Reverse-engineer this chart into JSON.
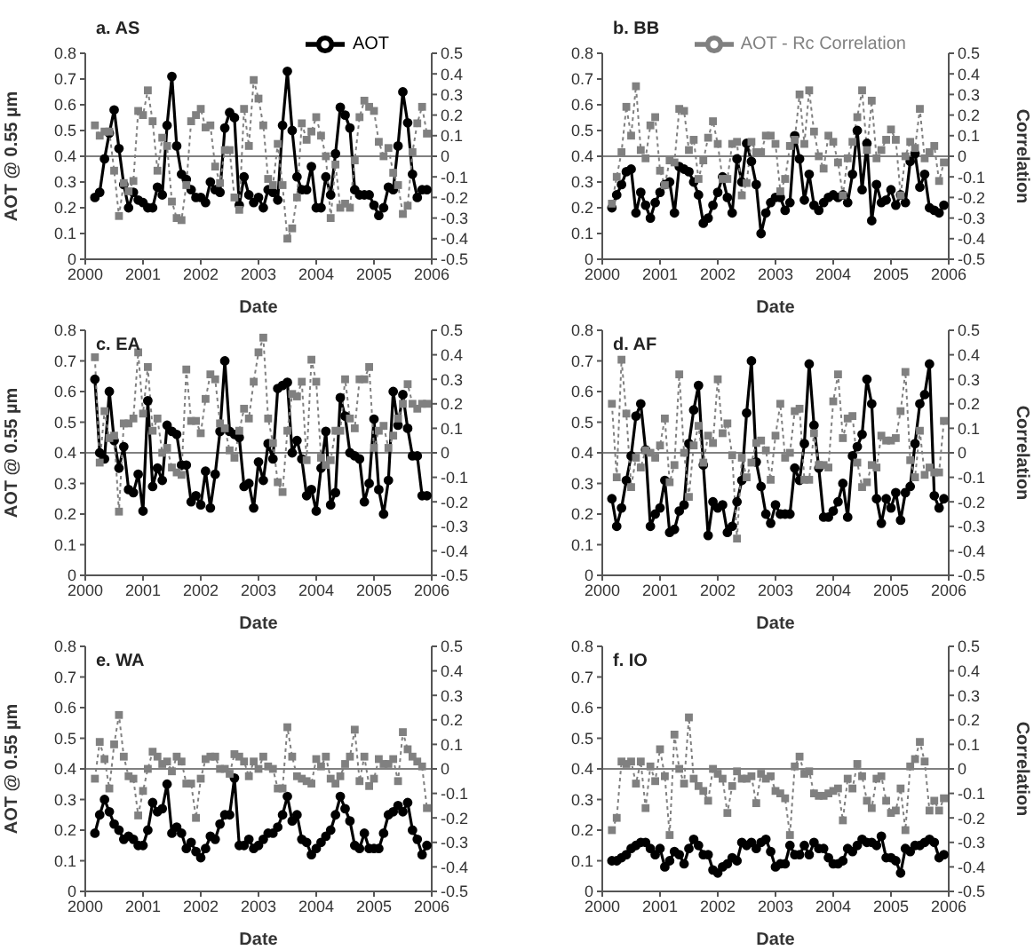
{
  "chart_data": [
    {
      "type": "line",
      "title": "a. AS",
      "xlabel": "Date",
      "ylabel": "AOT @ 0.55 µm",
      "x": [
        "2000-03",
        "2000-04",
        "2000-05",
        "2000-06",
        "2000-07",
        "2000-08",
        "2000-09",
        "2000-10",
        "2000-11",
        "2000-12",
        "2001-01",
        "2001-02",
        "2001-03",
        "2001-04",
        "2001-05",
        "2001-06",
        "2001-07",
        "2001-08",
        "2001-09",
        "2001-10",
        "2001-11",
        "2001-12",
        "2002-01",
        "2002-02",
        "2002-03",
        "2002-04",
        "2002-05",
        "2002-06",
        "2002-07",
        "2002-08",
        "2002-09",
        "2002-10",
        "2002-11",
        "2002-12",
        "2003-01",
        "2003-02",
        "2003-03",
        "2003-04",
        "2003-05",
        "2003-06",
        "2003-07",
        "2003-08",
        "2003-09",
        "2003-10",
        "2003-11",
        "2003-12",
        "2004-01",
        "2004-02",
        "2004-03",
        "2004-04",
        "2004-05",
        "2004-06",
        "2004-07",
        "2004-08",
        "2004-09",
        "2004-10",
        "2004-11",
        "2004-12",
        "2005-01",
        "2005-02",
        "2005-03",
        "2005-04",
        "2005-05",
        "2005-06",
        "2005-07",
        "2005-08",
        "2005-09",
        "2005-10",
        "2005-11",
        "2005-12"
      ],
      "xlim": [
        "2000",
        "2006"
      ],
      "xticks": [
        "2000",
        "2001",
        "2002",
        "2003",
        "2004",
        "2005",
        "2006"
      ],
      "ylim": [
        0,
        0.8
      ],
      "yticks": [
        0,
        0.1,
        0.2,
        0.3,
        0.4,
        0.5,
        0.6,
        0.7,
        0.8
      ],
      "y2lim": [
        -0.5,
        0.5
      ],
      "y2ticks": [
        -0.5,
        -0.4,
        -0.3,
        -0.2,
        -0.1,
        0,
        0.1,
        0.2,
        0.3,
        0.4,
        0.5
      ],
      "legend": "top right",
      "ref_lines": [
        {
          "axis": "y2",
          "value": 0,
          "color": "#808080"
        }
      ],
      "series": [
        {
          "name": "AOT",
          "color": "#000000",
          "marker": "circle",
          "line_style": "solid",
          "values": [
            0.24,
            0.26,
            0.39,
            0.49,
            0.58,
            0.43,
            0.29,
            0.2,
            0.26,
            0.23,
            0.22,
            0.2,
            0.2,
            0.28,
            0.25,
            0.52,
            0.71,
            0.44,
            0.33,
            0.31,
            0.27,
            0.24,
            0.24,
            0.22,
            0.3,
            0.27,
            0.26,
            0.51,
            0.57,
            0.55,
            0.21,
            0.32,
            0.25,
            0.22,
            0.24,
            0.2,
            0.27,
            0.26,
            0.23,
            0.52,
            0.73,
            0.5,
            0.32,
            0.27,
            0.27,
            0.36,
            0.2,
            0.2,
            0.32,
            0.25,
            0.41,
            0.59,
            0.56,
            0.51,
            0.27,
            0.25,
            0.25,
            0.25,
            0.21,
            0.17,
            0.2,
            0.28,
            0.27,
            0.44,
            0.65,
            0.53,
            0.33,
            0.24,
            0.27,
            0.27
          ]
        },
        {
          "color": "#808080",
          "marker": "square",
          "line_style": "dotted",
          "axis": "y2",
          "values": [
            0.15,
            0.1,
            0.12,
            0.12,
            -0.07,
            -0.29,
            -0.13,
            -0.17,
            -0.12,
            0.22,
            0.2,
            0.32,
            0.17,
            -0.07,
            0.09,
            0.05,
            -0.22,
            -0.3,
            -0.31,
            -0.14,
            0.17,
            0.2,
            0.23,
            0.14,
            0.15,
            -0.05,
            -0.13,
            0.03,
            0.03,
            -0.2,
            -0.26,
            0.23,
            0.05,
            0.37,
            0.28,
            0.15,
            -0.11,
            -0.14,
            0.06,
            -0.14,
            -0.4,
            -0.35,
            -0.2,
            0.16,
            0.08,
            0.12,
            0.19,
            0.1,
            0.0,
            -0.3,
            -0.04,
            -0.25,
            -0.23,
            -0.25,
            -0.02,
            0.19,
            0.27,
            0.24,
            0.22,
            0.07,
            0.0,
            0.04,
            -0.08,
            -0.14,
            -0.28,
            -0.24,
            0.02,
            0.16,
            0.24,
            0.11
          ]
        }
      ]
    },
    {
      "type": "line",
      "title": "b. BB",
      "xlabel": "Date",
      "y2label": "Correlation",
      "x": [
        "2000-03",
        "2000-04",
        "2000-05",
        "2000-06",
        "2000-07",
        "2000-08",
        "2000-09",
        "2000-10",
        "2000-11",
        "2000-12",
        "2001-01",
        "2001-02",
        "2001-03",
        "2001-04",
        "2001-05",
        "2001-06",
        "2001-07",
        "2001-08",
        "2001-09",
        "2001-10",
        "2001-11",
        "2001-12",
        "2002-01",
        "2002-02",
        "2002-03",
        "2002-04",
        "2002-05",
        "2002-06",
        "2002-07",
        "2002-08",
        "2002-09",
        "2002-10",
        "2002-11",
        "2002-12",
        "2003-01",
        "2003-02",
        "2003-03",
        "2003-04",
        "2003-05",
        "2003-06",
        "2003-07",
        "2003-08",
        "2003-09",
        "2003-10",
        "2003-11",
        "2003-12",
        "2004-01",
        "2004-02",
        "2004-03",
        "2004-04",
        "2004-05",
        "2004-06",
        "2004-07",
        "2004-08",
        "2004-09",
        "2004-10",
        "2004-11",
        "2004-12",
        "2005-01",
        "2005-02",
        "2005-03",
        "2005-04",
        "2005-05",
        "2005-06",
        "2005-07",
        "2005-08",
        "2005-09",
        "2005-10",
        "2005-11",
        "2005-12"
      ],
      "xlim": [
        "2000",
        "2006"
      ],
      "xticks": [
        "2000",
        "2001",
        "2002",
        "2003",
        "2004",
        "2005",
        "2006"
      ],
      "ylim": [
        0,
        0.8
      ],
      "yticks": [
        0,
        0.1,
        0.2,
        0.3,
        0.4,
        0.5,
        0.6,
        0.7,
        0.8
      ],
      "y2lim": [
        -0.5,
        0.5
      ],
      "y2ticks": [
        -0.5,
        -0.4,
        -0.3,
        -0.2,
        -0.1,
        0,
        0.1,
        0.2,
        0.3,
        0.4,
        0.5
      ],
      "legend": "top right",
      "ref_lines": [
        {
          "axis": "y2",
          "value": 0,
          "color": "#808080"
        }
      ],
      "series": [
        {
          "color": "#000000",
          "marker": "circle",
          "line_style": "solid",
          "values": [
            0.2,
            0.25,
            0.29,
            0.34,
            0.35,
            0.18,
            0.26,
            0.21,
            0.16,
            0.22,
            0.26,
            0.29,
            0.3,
            0.18,
            0.36,
            0.35,
            0.34,
            0.3,
            0.25,
            0.14,
            0.16,
            0.21,
            0.26,
            0.32,
            0.24,
            0.18,
            0.39,
            0.3,
            0.45,
            0.38,
            0.29,
            0.1,
            0.18,
            0.22,
            0.24,
            0.24,
            0.19,
            0.22,
            0.48,
            0.39,
            0.23,
            0.33,
            0.21,
            0.19,
            0.22,
            0.24,
            0.25,
            0.24,
            0.25,
            0.22,
            0.33,
            0.5,
            0.27,
            0.45,
            0.15,
            0.29,
            0.22,
            0.23,
            0.27,
            0.21,
            0.25,
            0.22,
            0.38,
            0.41,
            0.28,
            0.33,
            0.2,
            0.19,
            0.18,
            0.21
          ]
        },
        {
          "name": "AOT - Rc Correlation",
          "color": "#808080",
          "marker": "square",
          "line_style": "dotted",
          "axis": "y2",
          "values": [
            -0.23,
            -0.1,
            0.02,
            0.24,
            0.1,
            0.34,
            0.03,
            -0.01,
            0.15,
            0.19,
            -0.07,
            -0.14,
            -0.02,
            -0.03,
            0.23,
            0.22,
            0.03,
            0.08,
            -0.11,
            -0.02,
            0.09,
            0.17,
            0.06,
            -0.11,
            -0.11,
            0.06,
            0.07,
            -0.19,
            -0.13,
            0.07,
            0.02,
            0.02,
            0.1,
            0.1,
            0.06,
            -0.17,
            -0.11,
            0.05,
            0.08,
            0.3,
            0.06,
            0.32,
            0.12,
            0.0,
            -0.06,
            0.1,
            0.07,
            -0.03,
            -0.19,
            -0.01,
            0.07,
            0.19,
            0.32,
            0.03,
            0.27,
            -0.01,
            0.03,
            0.08,
            0.13,
            0.08,
            -0.19,
            0.0,
            0.07,
            0.04,
            0.23,
            -0.01,
            0.02,
            0.05,
            -0.12,
            -0.03
          ]
        }
      ]
    },
    {
      "type": "line",
      "title": "c. EA",
      "xlabel": "Date",
      "ylabel": "AOT @ 0.55 µm",
      "x": [
        "2000-03",
        "2000-04",
        "2000-05",
        "2000-06",
        "2000-07",
        "2000-08",
        "2000-09",
        "2000-10",
        "2000-11",
        "2000-12",
        "2001-01",
        "2001-02",
        "2001-03",
        "2001-04",
        "2001-05",
        "2001-06",
        "2001-07",
        "2001-08",
        "2001-09",
        "2001-10",
        "2001-11",
        "2001-12",
        "2002-01",
        "2002-02",
        "2002-03",
        "2002-04",
        "2002-05",
        "2002-06",
        "2002-07",
        "2002-08",
        "2002-09",
        "2002-10",
        "2002-11",
        "2002-12",
        "2003-01",
        "2003-02",
        "2003-03",
        "2003-04",
        "2003-05",
        "2003-06",
        "2003-07",
        "2003-08",
        "2003-09",
        "2003-10",
        "2003-11",
        "2003-12",
        "2004-01",
        "2004-02",
        "2004-03",
        "2004-04",
        "2004-05",
        "2004-06",
        "2004-07",
        "2004-08",
        "2004-09",
        "2004-10",
        "2004-11",
        "2004-12",
        "2005-01",
        "2005-02",
        "2005-03",
        "2005-04",
        "2005-05",
        "2005-06",
        "2005-07",
        "2005-08",
        "2005-09",
        "2005-10",
        "2005-11",
        "2005-12"
      ],
      "xlim": [
        "2000",
        "2006"
      ],
      "xticks": [
        "2000",
        "2001",
        "2002",
        "2003",
        "2004",
        "2005",
        "2006"
      ],
      "ylim": [
        0,
        0.8
      ],
      "yticks": [
        0,
        0.1,
        0.2,
        0.3,
        0.4,
        0.5,
        0.6,
        0.7,
        0.8
      ],
      "y2lim": [
        -0.5,
        0.5
      ],
      "y2ticks": [
        -0.5,
        -0.4,
        -0.3,
        -0.2,
        -0.1,
        0,
        0.1,
        0.2,
        0.3,
        0.4,
        0.5
      ],
      "ref_lines": [
        {
          "axis": "y2",
          "value": 0,
          "color": "#808080"
        }
      ],
      "series": [
        {
          "color": "#000000",
          "marker": "circle",
          "line_style": "solid",
          "values": [
            0.64,
            0.4,
            0.38,
            0.6,
            0.44,
            0.35,
            0.42,
            0.28,
            0.27,
            0.33,
            0.21,
            0.57,
            0.29,
            0.35,
            0.31,
            0.49,
            0.47,
            0.46,
            0.36,
            0.36,
            0.24,
            0.26,
            0.23,
            0.34,
            0.22,
            0.33,
            0.47,
            0.7,
            0.47,
            0.46,
            0.45,
            0.29,
            0.3,
            0.22,
            0.37,
            0.31,
            0.43,
            0.38,
            0.61,
            0.62,
            0.63,
            0.4,
            0.44,
            0.38,
            0.26,
            0.28,
            0.21,
            0.35,
            0.47,
            0.23,
            0.27,
            0.58,
            0.52,
            0.4,
            0.39,
            0.38,
            0.24,
            0.3,
            0.51,
            0.28,
            0.2,
            0.31,
            0.6,
            0.49,
            0.59,
            0.48,
            0.39,
            0.39,
            0.26,
            0.26
          ]
        },
        {
          "color": "#808080",
          "marker": "square",
          "line_style": "dotted",
          "axis": "y2",
          "values": [
            0.39,
            -0.04,
            0.17,
            0.06,
            0.07,
            -0.24,
            0.12,
            0.12,
            0.14,
            0.41,
            0.16,
            0.35,
            0.09,
            0.14,
            0.0,
            0.02,
            -0.06,
            -0.08,
            -0.09,
            0.34,
            0.13,
            0.13,
            0.08,
            0.22,
            0.32,
            0.3,
            0.12,
            0.1,
            0.01,
            -0.02,
            0.09,
            0.18,
            0.14,
            0.29,
            0.41,
            0.47,
            0.14,
            0.04,
            -0.12,
            -0.16,
            0.09,
            0.24,
            0.23,
            0.29,
            -0.03,
            0.38,
            0.29,
            -0.02,
            -0.05,
            -0.03,
            0.09,
            0.09,
            0.3,
            0.14,
            0.1,
            0.3,
            0.3,
            0.35,
            0.02,
            0.09,
            0.11,
            0.02,
            0.07,
            0.14,
            0.2,
            0.28,
            0.2,
            0.18,
            0.2,
            0.2
          ]
        }
      ]
    },
    {
      "type": "line",
      "title": "d. AF",
      "xlabel": "Date",
      "y2label": "Correlation",
      "x": [
        "2000-03",
        "2000-04",
        "2000-05",
        "2000-06",
        "2000-07",
        "2000-08",
        "2000-09",
        "2000-10",
        "2000-11",
        "2000-12",
        "2001-01",
        "2001-02",
        "2001-03",
        "2001-04",
        "2001-05",
        "2001-06",
        "2001-07",
        "2001-08",
        "2001-09",
        "2001-10",
        "2001-11",
        "2001-12",
        "2002-01",
        "2002-02",
        "2002-03",
        "2002-04",
        "2002-05",
        "2002-06",
        "2002-07",
        "2002-08",
        "2002-09",
        "2002-10",
        "2002-11",
        "2002-12",
        "2003-01",
        "2003-02",
        "2003-03",
        "2003-04",
        "2003-05",
        "2003-06",
        "2003-07",
        "2003-08",
        "2003-09",
        "2003-10",
        "2003-11",
        "2003-12",
        "2004-01",
        "2004-02",
        "2004-03",
        "2004-04",
        "2004-05",
        "2004-06",
        "2004-07",
        "2004-08",
        "2004-09",
        "2004-10",
        "2004-11",
        "2004-12",
        "2005-01",
        "2005-02",
        "2005-03",
        "2005-04",
        "2005-05",
        "2005-06",
        "2005-07",
        "2005-08",
        "2005-09",
        "2005-10",
        "2005-11",
        "2005-12"
      ],
      "xlim": [
        "2000",
        "2006"
      ],
      "xticks": [
        "2000",
        "2001",
        "2002",
        "2003",
        "2004",
        "2005",
        "2006"
      ],
      "ylim": [
        0,
        0.8
      ],
      "yticks": [
        0,
        0.1,
        0.2,
        0.3,
        0.4,
        0.5,
        0.6,
        0.7,
        0.8
      ],
      "y2lim": [
        -0.5,
        0.5
      ],
      "y2ticks": [
        -0.5,
        -0.4,
        -0.3,
        -0.2,
        -0.1,
        0,
        0.1,
        0.2,
        0.3,
        0.4,
        0.5
      ],
      "ref_lines": [
        {
          "axis": "y2",
          "value": 0,
          "color": "#808080"
        }
      ],
      "series": [
        {
          "color": "#000000",
          "marker": "circle",
          "line_style": "solid",
          "values": [
            0.25,
            0.16,
            0.22,
            0.31,
            0.39,
            0.52,
            0.56,
            0.41,
            0.16,
            0.2,
            0.22,
            0.31,
            0.14,
            0.15,
            0.21,
            0.23,
            0.43,
            0.54,
            0.62,
            0.36,
            0.13,
            0.24,
            0.22,
            0.23,
            0.14,
            0.16,
            0.24,
            0.31,
            0.53,
            0.7,
            0.37,
            0.29,
            0.2,
            0.17,
            0.23,
            0.2,
            0.2,
            0.2,
            0.35,
            0.31,
            0.43,
            0.69,
            0.49,
            0.35,
            0.19,
            0.19,
            0.21,
            0.24,
            0.3,
            0.19,
            0.39,
            0.42,
            0.46,
            0.64,
            0.56,
            0.25,
            0.17,
            0.25,
            0.22,
            0.27,
            0.18,
            0.27,
            0.29,
            0.43,
            0.56,
            0.59,
            0.69,
            0.26,
            0.22,
            0.25
          ]
        },
        {
          "color": "#808080",
          "marker": "square",
          "line_style": "dotted",
          "axis": "y2",
          "values": [
            0.2,
            -0.1,
            0.38,
            0.16,
            -0.14,
            -0.02,
            -0.06,
            0.01,
            0.0,
            -0.02,
            0.03,
            0.14,
            -0.12,
            -0.05,
            0.32,
            0.0,
            -0.18,
            0.03,
            0.11,
            -0.04,
            0.07,
            0.04,
            0.3,
            0.08,
            0.12,
            -0.01,
            -0.35,
            -0.02,
            -0.1,
            -0.04,
            0.04,
            0.05,
            0.01,
            -0.11,
            0.07,
            0.2,
            -0.02,
            0.0,
            0.17,
            0.18,
            -0.11,
            -0.11,
            0.08,
            -0.05,
            -0.05,
            -0.06,
            0.21,
            0.32,
            0.06,
            0.14,
            0.15,
            -0.04,
            -0.14,
            -0.12,
            -0.05,
            -0.06,
            0.07,
            0.05,
            0.05,
            0.06,
            0.17,
            0.33,
            -0.03,
            -0.1,
            0.09,
            -0.09,
            -0.06,
            -0.08,
            -0.08,
            0.13
          ]
        }
      ]
    },
    {
      "type": "line",
      "title": "e. WA",
      "xlabel": "Date",
      "ylabel": "AOT @ 0.55 µm",
      "x": [
        "2000-03",
        "2000-04",
        "2000-05",
        "2000-06",
        "2000-07",
        "2000-08",
        "2000-09",
        "2000-10",
        "2000-11",
        "2000-12",
        "2001-01",
        "2001-02",
        "2001-03",
        "2001-04",
        "2001-05",
        "2001-06",
        "2001-07",
        "2001-08",
        "2001-09",
        "2001-10",
        "2001-11",
        "2001-12",
        "2002-01",
        "2002-02",
        "2002-03",
        "2002-04",
        "2002-05",
        "2002-06",
        "2002-07",
        "2002-08",
        "2002-09",
        "2002-10",
        "2002-11",
        "2002-12",
        "2003-01",
        "2003-02",
        "2003-03",
        "2003-04",
        "2003-05",
        "2003-06",
        "2003-07",
        "2003-08",
        "2003-09",
        "2003-10",
        "2003-11",
        "2003-12",
        "2004-01",
        "2004-02",
        "2004-03",
        "2004-04",
        "2004-05",
        "2004-06",
        "2004-07",
        "2004-08",
        "2004-09",
        "2004-10",
        "2004-11",
        "2004-12",
        "2005-01",
        "2005-02",
        "2005-03",
        "2005-04",
        "2005-05",
        "2005-06",
        "2005-07",
        "2005-08",
        "2005-09",
        "2005-10",
        "2005-11",
        "2005-12"
      ],
      "xlim": [
        "2000",
        "2006"
      ],
      "xticks": [
        "2000",
        "2001",
        "2002",
        "2003",
        "2004",
        "2005",
        "2006"
      ],
      "ylim": [
        0,
        0.8
      ],
      "yticks": [
        0,
        0.1,
        0.2,
        0.3,
        0.4,
        0.5,
        0.6,
        0.7,
        0.8
      ],
      "y2lim": [
        -0.5,
        0.5
      ],
      "y2ticks": [
        -0.5,
        -0.4,
        -0.3,
        -0.2,
        -0.1,
        0,
        0.1,
        0.2,
        0.3,
        0.4,
        0.5
      ],
      "ref_lines": [
        {
          "axis": "y2",
          "value": 0,
          "color": "#808080"
        }
      ],
      "series": [
        {
          "color": "#000000",
          "marker": "circle",
          "line_style": "solid",
          "values": [
            0.19,
            0.25,
            0.3,
            0.26,
            0.22,
            0.2,
            0.17,
            0.18,
            0.17,
            0.15,
            0.15,
            0.2,
            0.29,
            0.26,
            0.27,
            0.35,
            0.19,
            0.21,
            0.19,
            0.14,
            0.16,
            0.13,
            0.11,
            0.14,
            0.18,
            0.17,
            0.22,
            0.25,
            0.25,
            0.37,
            0.15,
            0.15,
            0.17,
            0.14,
            0.15,
            0.17,
            0.19,
            0.19,
            0.21,
            0.25,
            0.31,
            0.23,
            0.25,
            0.17,
            0.16,
            0.12,
            0.14,
            0.16,
            0.18,
            0.2,
            0.25,
            0.31,
            0.27,
            0.23,
            0.15,
            0.14,
            0.19,
            0.14,
            0.14,
            0.14,
            0.19,
            0.25,
            0.26,
            0.28,
            0.26,
            0.29,
            0.2,
            0.17,
            0.12,
            0.15
          ]
        },
        {
          "color": "#808080",
          "marker": "square",
          "line_style": "dotted",
          "axis": "y2",
          "values": [
            -0.04,
            0.11,
            0.04,
            -0.08,
            0.1,
            0.22,
            0.05,
            -0.03,
            -0.04,
            -0.19,
            -0.09,
            0.0,
            0.07,
            0.05,
            0.02,
            0.03,
            -0.01,
            0.05,
            0.03,
            -0.06,
            -0.06,
            -0.2,
            -0.04,
            0.04,
            0.05,
            0.05,
            0.0,
            0.0,
            -0.02,
            0.06,
            0.05,
            0.03,
            -0.03,
            0.03,
            0.0,
            0.05,
            0.01,
            0.0,
            -0.08,
            -0.08,
            0.17,
            0.05,
            -0.03,
            -0.04,
            -0.05,
            -0.06,
            0.04,
            0.01,
            0.05,
            -0.04,
            -0.06,
            -0.03,
            0.02,
            0.05,
            0.16,
            -0.05,
            0.05,
            -0.07,
            -0.04,
            0.04,
            0.02,
            0.02,
            0.04,
            -0.05,
            0.15,
            0.08,
            0.05,
            0.03,
            0.01,
            -0.16
          ]
        }
      ]
    },
    {
      "type": "line",
      "title": "f. IO",
      "xlabel": "Date",
      "y2label": "Correlation",
      "x": [
        "2000-03",
        "2000-04",
        "2000-05",
        "2000-06",
        "2000-07",
        "2000-08",
        "2000-09",
        "2000-10",
        "2000-11",
        "2000-12",
        "2001-01",
        "2001-02",
        "2001-03",
        "2001-04",
        "2001-05",
        "2001-06",
        "2001-07",
        "2001-08",
        "2001-09",
        "2001-10",
        "2001-11",
        "2001-12",
        "2002-01",
        "2002-02",
        "2002-03",
        "2002-04",
        "2002-05",
        "2002-06",
        "2002-07",
        "2002-08",
        "2002-09",
        "2002-10",
        "2002-11",
        "2002-12",
        "2003-01",
        "2003-02",
        "2003-03",
        "2003-04",
        "2003-05",
        "2003-06",
        "2003-07",
        "2003-08",
        "2003-09",
        "2003-10",
        "2003-11",
        "2003-12",
        "2004-01",
        "2004-02",
        "2004-03",
        "2004-04",
        "2004-05",
        "2004-06",
        "2004-07",
        "2004-08",
        "2004-09",
        "2004-10",
        "2004-11",
        "2004-12",
        "2005-01",
        "2005-02",
        "2005-03",
        "2005-04",
        "2005-05",
        "2005-06",
        "2005-07",
        "2005-08",
        "2005-09",
        "2005-10",
        "2005-11",
        "2005-12"
      ],
      "xlim": [
        "2000",
        "2006"
      ],
      "xticks": [
        "2000",
        "2001",
        "2002",
        "2003",
        "2004",
        "2005",
        "2006"
      ],
      "ylim": [
        0,
        0.8
      ],
      "yticks": [
        0,
        0.1,
        0.2,
        0.3,
        0.4,
        0.5,
        0.6,
        0.7,
        0.8
      ],
      "y2lim": [
        -0.5,
        0.5
      ],
      "y2ticks": [
        -0.5,
        -0.4,
        -0.3,
        -0.2,
        -0.1,
        0,
        0.1,
        0.2,
        0.3,
        0.4,
        0.5
      ],
      "ref_lines": [
        {
          "axis": "y2",
          "value": 0,
          "color": "#808080"
        }
      ],
      "series": [
        {
          "color": "#000000",
          "marker": "circle",
          "line_style": "solid",
          "values": [
            0.1,
            0.1,
            0.11,
            0.12,
            0.14,
            0.15,
            0.16,
            0.16,
            0.14,
            0.12,
            0.14,
            0.08,
            0.1,
            0.13,
            0.12,
            0.09,
            0.14,
            0.17,
            0.15,
            0.12,
            0.12,
            0.07,
            0.06,
            0.08,
            0.09,
            0.11,
            0.1,
            0.16,
            0.15,
            0.16,
            0.14,
            0.16,
            0.17,
            0.13,
            0.08,
            0.09,
            0.09,
            0.15,
            0.12,
            0.12,
            0.15,
            0.12,
            0.16,
            0.14,
            0.14,
            0.11,
            0.09,
            0.09,
            0.1,
            0.14,
            0.13,
            0.15,
            0.17,
            0.16,
            0.16,
            0.15,
            0.18,
            0.11,
            0.11,
            0.1,
            0.06,
            0.14,
            0.13,
            0.15,
            0.15,
            0.16,
            0.17,
            0.16,
            0.11,
            0.12
          ]
        },
        {
          "color": "#808080",
          "marker": "square",
          "line_style": "dotted",
          "axis": "y2",
          "values": [
            -0.25,
            -0.2,
            0.03,
            0.02,
            0.03,
            -0.06,
            0.03,
            -0.16,
            0.01,
            -0.05,
            0.08,
            -0.03,
            -0.27,
            0.14,
            0.0,
            -0.06,
            0.21,
            -0.04,
            -0.07,
            -0.09,
            -0.13,
            0.0,
            -0.02,
            -0.04,
            -0.18,
            -0.07,
            -0.01,
            -0.04,
            -0.04,
            -0.03,
            -0.14,
            -0.02,
            -0.04,
            -0.03,
            -0.09,
            -0.1,
            -0.12,
            -0.27,
            0.01,
            0.05,
            -0.02,
            -0.01,
            -0.1,
            -0.11,
            -0.11,
            -0.1,
            -0.09,
            -0.08,
            -0.21,
            -0.04,
            -0.08,
            0.02,
            -0.03,
            -0.13,
            -0.16,
            -0.04,
            -0.03,
            -0.13,
            -0.18,
            -0.17,
            -0.08,
            -0.25,
            0.01,
            0.04,
            0.11,
            0.03,
            -0.17,
            -0.13,
            -0.17,
            -0.12
          ]
        }
      ]
    }
  ]
}
